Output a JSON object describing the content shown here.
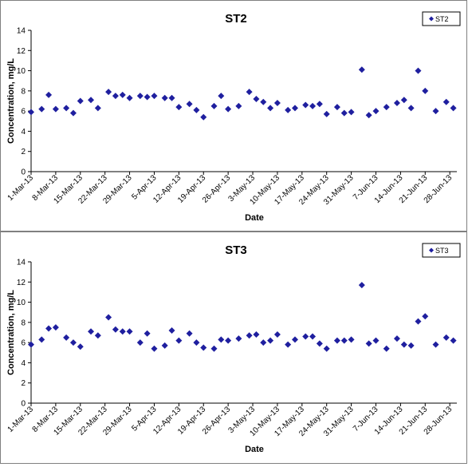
{
  "chart_data": [
    {
      "type": "scatter",
      "title": "ST2",
      "xlabel": "Date",
      "ylabel": "Concentration, mg/L",
      "ylim": [
        0,
        14
      ],
      "yticks": [
        0,
        2,
        4,
        6,
        8,
        10,
        12,
        14
      ],
      "xlim": [
        "2013-03-01",
        "2013-06-30"
      ],
      "xtick_labels": [
        "1-Mar-13",
        "8-Mar-13",
        "15-Mar-13",
        "22-Mar-13",
        "29-Mar-13",
        "5-Apr-13",
        "12-Apr-13",
        "19-Apr-13",
        "26-Apr-13",
        "3-May-13",
        "10-May-13",
        "17-May-13",
        "24-May-13",
        "31-May-13",
        "7-Jun-13",
        "14-Jun-13",
        "21-Jun-13",
        "28-Jun-13"
      ],
      "grid": false,
      "legend_position": "top-right",
      "color": "#1f1f9f",
      "series": [
        {
          "name": "ST2",
          "points": [
            [
              "2013-03-01",
              5.9
            ],
            [
              "2013-03-04",
              6.2
            ],
            [
              "2013-03-06",
              7.6
            ],
            [
              "2013-03-08",
              6.2
            ],
            [
              "2013-03-11",
              6.3
            ],
            [
              "2013-03-13",
              5.8
            ],
            [
              "2013-03-15",
              7.0
            ],
            [
              "2013-03-18",
              7.1
            ],
            [
              "2013-03-20",
              6.3
            ],
            [
              "2013-03-23",
              7.9
            ],
            [
              "2013-03-25",
              7.5
            ],
            [
              "2013-03-27",
              7.6
            ],
            [
              "2013-03-29",
              7.3
            ],
            [
              "2013-04-01",
              7.5
            ],
            [
              "2013-04-03",
              7.4
            ],
            [
              "2013-04-05",
              7.5
            ],
            [
              "2013-04-08",
              7.3
            ],
            [
              "2013-04-10",
              7.3
            ],
            [
              "2013-04-12",
              6.4
            ],
            [
              "2013-04-15",
              6.7
            ],
            [
              "2013-04-17",
              6.1
            ],
            [
              "2013-04-19",
              5.4
            ],
            [
              "2013-04-22",
              6.5
            ],
            [
              "2013-04-24",
              7.5
            ],
            [
              "2013-04-26",
              6.2
            ],
            [
              "2013-04-29",
              6.5
            ],
            [
              "2013-05-02",
              7.9
            ],
            [
              "2013-05-04",
              7.2
            ],
            [
              "2013-05-06",
              6.9
            ],
            [
              "2013-05-08",
              6.3
            ],
            [
              "2013-05-10",
              6.8
            ],
            [
              "2013-05-13",
              6.1
            ],
            [
              "2013-05-15",
              6.3
            ],
            [
              "2013-05-18",
              6.6
            ],
            [
              "2013-05-20",
              6.5
            ],
            [
              "2013-05-22",
              6.7
            ],
            [
              "2013-05-24",
              5.7
            ],
            [
              "2013-05-27",
              6.4
            ],
            [
              "2013-05-29",
              5.8
            ],
            [
              "2013-05-31",
              5.9
            ],
            [
              "2013-06-03",
              10.1
            ],
            [
              "2013-06-05",
              5.6
            ],
            [
              "2013-06-07",
              6.0
            ],
            [
              "2013-06-10",
              6.4
            ],
            [
              "2013-06-13",
              6.8
            ],
            [
              "2013-06-15",
              7.1
            ],
            [
              "2013-06-17",
              6.3
            ],
            [
              "2013-06-19",
              10.0
            ],
            [
              "2013-06-21",
              8.0
            ],
            [
              "2013-06-24",
              6.0
            ],
            [
              "2013-06-27",
              6.9
            ],
            [
              "2013-06-29",
              6.3
            ]
          ]
        }
      ]
    },
    {
      "type": "scatter",
      "title": "ST3",
      "xlabel": "Date",
      "ylabel": "Concentration, mg/L",
      "ylim": [
        0,
        14
      ],
      "yticks": [
        0,
        2,
        4,
        6,
        8,
        10,
        12,
        14
      ],
      "xlim": [
        "2013-03-01",
        "2013-06-30"
      ],
      "xtick_labels": [
        "1-Mar-13",
        "8-Mar-13",
        "15-Mar-13",
        "22-Mar-13",
        "29-Mar-13",
        "5-Apr-13",
        "12-Apr-13",
        "19-Apr-13",
        "26-Apr-13",
        "3-May-13",
        "10-May-13",
        "17-May-13",
        "24-May-13",
        "31-May-13",
        "7-Jun-13",
        "14-Jun-13",
        "21-Jun-13",
        "28-Jun-13"
      ],
      "grid": false,
      "legend_position": "top-right",
      "color": "#1f1f9f",
      "series": [
        {
          "name": "ST3",
          "points": [
            [
              "2013-03-01",
              5.8
            ],
            [
              "2013-03-04",
              6.3
            ],
            [
              "2013-03-06",
              7.4
            ],
            [
              "2013-03-08",
              7.5
            ],
            [
              "2013-03-11",
              6.5
            ],
            [
              "2013-03-13",
              6.0
            ],
            [
              "2013-03-15",
              5.6
            ],
            [
              "2013-03-18",
              7.1
            ],
            [
              "2013-03-20",
              6.7
            ],
            [
              "2013-03-23",
              8.5
            ],
            [
              "2013-03-25",
              7.3
            ],
            [
              "2013-03-27",
              7.1
            ],
            [
              "2013-03-29",
              7.1
            ],
            [
              "2013-04-01",
              6.0
            ],
            [
              "2013-04-03",
              6.9
            ],
            [
              "2013-04-05",
              5.4
            ],
            [
              "2013-04-08",
              5.7
            ],
            [
              "2013-04-10",
              7.2
            ],
            [
              "2013-04-12",
              6.2
            ],
            [
              "2013-04-15",
              6.9
            ],
            [
              "2013-04-17",
              6.0
            ],
            [
              "2013-04-19",
              5.5
            ],
            [
              "2013-04-22",
              5.4
            ],
            [
              "2013-04-24",
              6.3
            ],
            [
              "2013-04-26",
              6.2
            ],
            [
              "2013-04-29",
              6.4
            ],
            [
              "2013-05-02",
              6.7
            ],
            [
              "2013-05-04",
              6.8
            ],
            [
              "2013-05-06",
              6.0
            ],
            [
              "2013-05-08",
              6.2
            ],
            [
              "2013-05-10",
              6.8
            ],
            [
              "2013-05-13",
              5.8
            ],
            [
              "2013-05-15",
              6.3
            ],
            [
              "2013-05-18",
              6.6
            ],
            [
              "2013-05-20",
              6.6
            ],
            [
              "2013-05-22",
              5.9
            ],
            [
              "2013-05-24",
              5.4
            ],
            [
              "2013-05-27",
              6.2
            ],
            [
              "2013-05-29",
              6.2
            ],
            [
              "2013-05-31",
              6.3
            ],
            [
              "2013-06-03",
              11.7
            ],
            [
              "2013-06-05",
              5.9
            ],
            [
              "2013-06-07",
              6.2
            ],
            [
              "2013-06-10",
              5.4
            ],
            [
              "2013-06-13",
              6.4
            ],
            [
              "2013-06-15",
              5.8
            ],
            [
              "2013-06-17",
              5.7
            ],
            [
              "2013-06-19",
              8.1
            ],
            [
              "2013-06-21",
              8.6
            ],
            [
              "2013-06-24",
              5.8
            ],
            [
              "2013-06-27",
              6.5
            ],
            [
              "2013-06-29",
              6.2
            ]
          ]
        }
      ]
    }
  ]
}
